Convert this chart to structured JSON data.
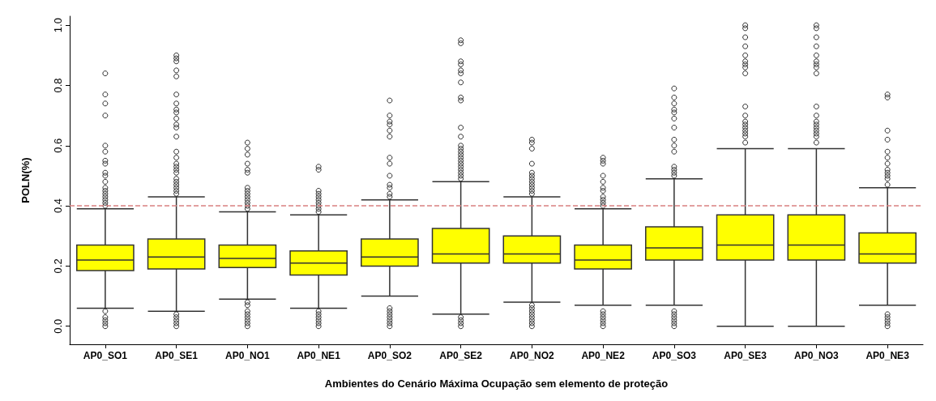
{
  "chart_data": {
    "type": "box",
    "xlabel": "Ambientes do Cenário Máxima Ocupação sem elemento de proteção",
    "ylabel": "POLN(%)",
    "categories": [
      "AP0_SO1",
      "AP0_SE1",
      "AP0_NO1",
      "AP0_NE1",
      "AP0_SO2",
      "AP0_SE2",
      "AP0_NO2",
      "AP0_NE2",
      "AP0_SO3",
      "AP0_SE3",
      "AP0_NO3",
      "AP0_NE3"
    ],
    "color": "#ffff00",
    "marker": "circle",
    "grid": false,
    "ylim": [
      -0.06,
      1.03
    ],
    "yticks": [
      {
        "value": 0,
        "label": "0.0"
      },
      {
        "value": 0.2,
        "label": "0.2"
      },
      {
        "value": 0.4,
        "label": "0.4"
      },
      {
        "value": 0.6,
        "label": "0.6"
      },
      {
        "value": 0.8,
        "label": "0.8"
      },
      {
        "value": 1,
        "label": "1.0"
      }
    ],
    "ref_lines": [
      {
        "axis": "y",
        "value": 0.4,
        "color": "#d98080",
        "line_style": "dashed"
      }
    ],
    "boxes": [
      {
        "low": 0.06,
        "q1": 0.185,
        "median": 0.22,
        "q3": 0.27,
        "high": 0.39,
        "outliers": [
          0.84,
          0.77,
          0.74,
          0.7,
          0.6,
          0.58,
          0.55,
          0.54,
          0.51,
          0.5,
          0.48,
          0.46,
          0.45,
          0.44,
          0.43,
          0.42,
          0.41,
          0.4,
          0.05,
          0.03,
          0.02,
          0.01,
          0
        ]
      },
      {
        "low": 0.05,
        "q1": 0.19,
        "median": 0.23,
        "q3": 0.29,
        "high": 0.43,
        "outliers": [
          0.9,
          0.89,
          0.88,
          0.85,
          0.83,
          0.77,
          0.74,
          0.72,
          0.71,
          0.69,
          0.67,
          0.66,
          0.63,
          0.58,
          0.56,
          0.54,
          0.53,
          0.52,
          0.51,
          0.49,
          0.48,
          0.47,
          0.46,
          0.45,
          0.44,
          0.04,
          0.03,
          0.02,
          0.01,
          0
        ]
      },
      {
        "low": 0.09,
        "q1": 0.195,
        "median": 0.225,
        "q3": 0.27,
        "high": 0.38,
        "outliers": [
          0.61,
          0.59,
          0.57,
          0.54,
          0.52,
          0.51,
          0.46,
          0.45,
          0.44,
          0.43,
          0.42,
          0.41,
          0.4,
          0.39,
          0.08,
          0.07,
          0.05,
          0.04,
          0.03,
          0.02,
          0.01,
          0
        ]
      },
      {
        "low": 0.06,
        "q1": 0.17,
        "median": 0.21,
        "q3": 0.25,
        "high": 0.37,
        "outliers": [
          0.53,
          0.52,
          0.45,
          0.44,
          0.43,
          0.42,
          0.41,
          0.4,
          0.39,
          0.38,
          0.05,
          0.04,
          0.03,
          0.02,
          0.01,
          0
        ]
      },
      {
        "low": 0.1,
        "q1": 0.2,
        "median": 0.23,
        "q3": 0.29,
        "high": 0.42,
        "outliers": [
          0.75,
          0.7,
          0.68,
          0.67,
          0.65,
          0.63,
          0.56,
          0.54,
          0.5,
          0.47,
          0.46,
          0.44,
          0.43,
          0.06,
          0.05,
          0.04,
          0.03,
          0.02,
          0.01,
          0
        ]
      },
      {
        "low": 0.04,
        "q1": 0.21,
        "median": 0.24,
        "q3": 0.325,
        "high": 0.48,
        "outliers": [
          0.95,
          0.94,
          0.88,
          0.87,
          0.85,
          0.84,
          0.81,
          0.76,
          0.75,
          0.66,
          0.63,
          0.6,
          0.59,
          0.58,
          0.57,
          0.56,
          0.55,
          0.54,
          0.53,
          0.52,
          0.51,
          0.5,
          0.49,
          0.03,
          0.02,
          0.01,
          0
        ]
      },
      {
        "low": 0.08,
        "q1": 0.21,
        "median": 0.24,
        "q3": 0.3,
        "high": 0.43,
        "outliers": [
          0.62,
          0.61,
          0.59,
          0.54,
          0.51,
          0.5,
          0.49,
          0.48,
          0.47,
          0.46,
          0.45,
          0.44,
          0.07,
          0.06,
          0.05,
          0.04,
          0.03,
          0.02,
          0.01,
          0
        ]
      },
      {
        "low": 0.07,
        "q1": 0.19,
        "median": 0.22,
        "q3": 0.27,
        "high": 0.39,
        "outliers": [
          0.56,
          0.55,
          0.54,
          0.5,
          0.48,
          0.46,
          0.45,
          0.43,
          0.42,
          0.41,
          0.4,
          0.05,
          0.04,
          0.03,
          0.02,
          0.01,
          0
        ]
      },
      {
        "low": 0.07,
        "q1": 0.22,
        "median": 0.26,
        "q3": 0.33,
        "high": 0.49,
        "outliers": [
          0.79,
          0.76,
          0.74,
          0.72,
          0.71,
          0.69,
          0.66,
          0.62,
          0.6,
          0.58,
          0.53,
          0.52,
          0.51,
          0.5,
          0.05,
          0.04,
          0.03,
          0.02,
          0.01,
          0
        ]
      },
      {
        "low": 0,
        "q1": 0.22,
        "median": 0.27,
        "q3": 0.37,
        "high": 0.59,
        "outliers": [
          1,
          0.99,
          0.96,
          0.93,
          0.9,
          0.88,
          0.87,
          0.86,
          0.84,
          0.73,
          0.7,
          0.68,
          0.67,
          0.66,
          0.65,
          0.64,
          0.63,
          0.61
        ]
      },
      {
        "low": 0,
        "q1": 0.22,
        "median": 0.27,
        "q3": 0.37,
        "high": 0.59,
        "outliers": [
          1,
          0.99,
          0.96,
          0.93,
          0.9,
          0.88,
          0.87,
          0.86,
          0.84,
          0.73,
          0.7,
          0.68,
          0.67,
          0.66,
          0.65,
          0.64,
          0.63,
          0.61
        ]
      },
      {
        "low": 0.07,
        "q1": 0.21,
        "median": 0.24,
        "q3": 0.31,
        "high": 0.46,
        "outliers": [
          0.77,
          0.76,
          0.65,
          0.62,
          0.58,
          0.56,
          0.54,
          0.52,
          0.51,
          0.5,
          0.49,
          0.47,
          0.04,
          0.03,
          0.02,
          0.01,
          0
        ]
      }
    ]
  }
}
